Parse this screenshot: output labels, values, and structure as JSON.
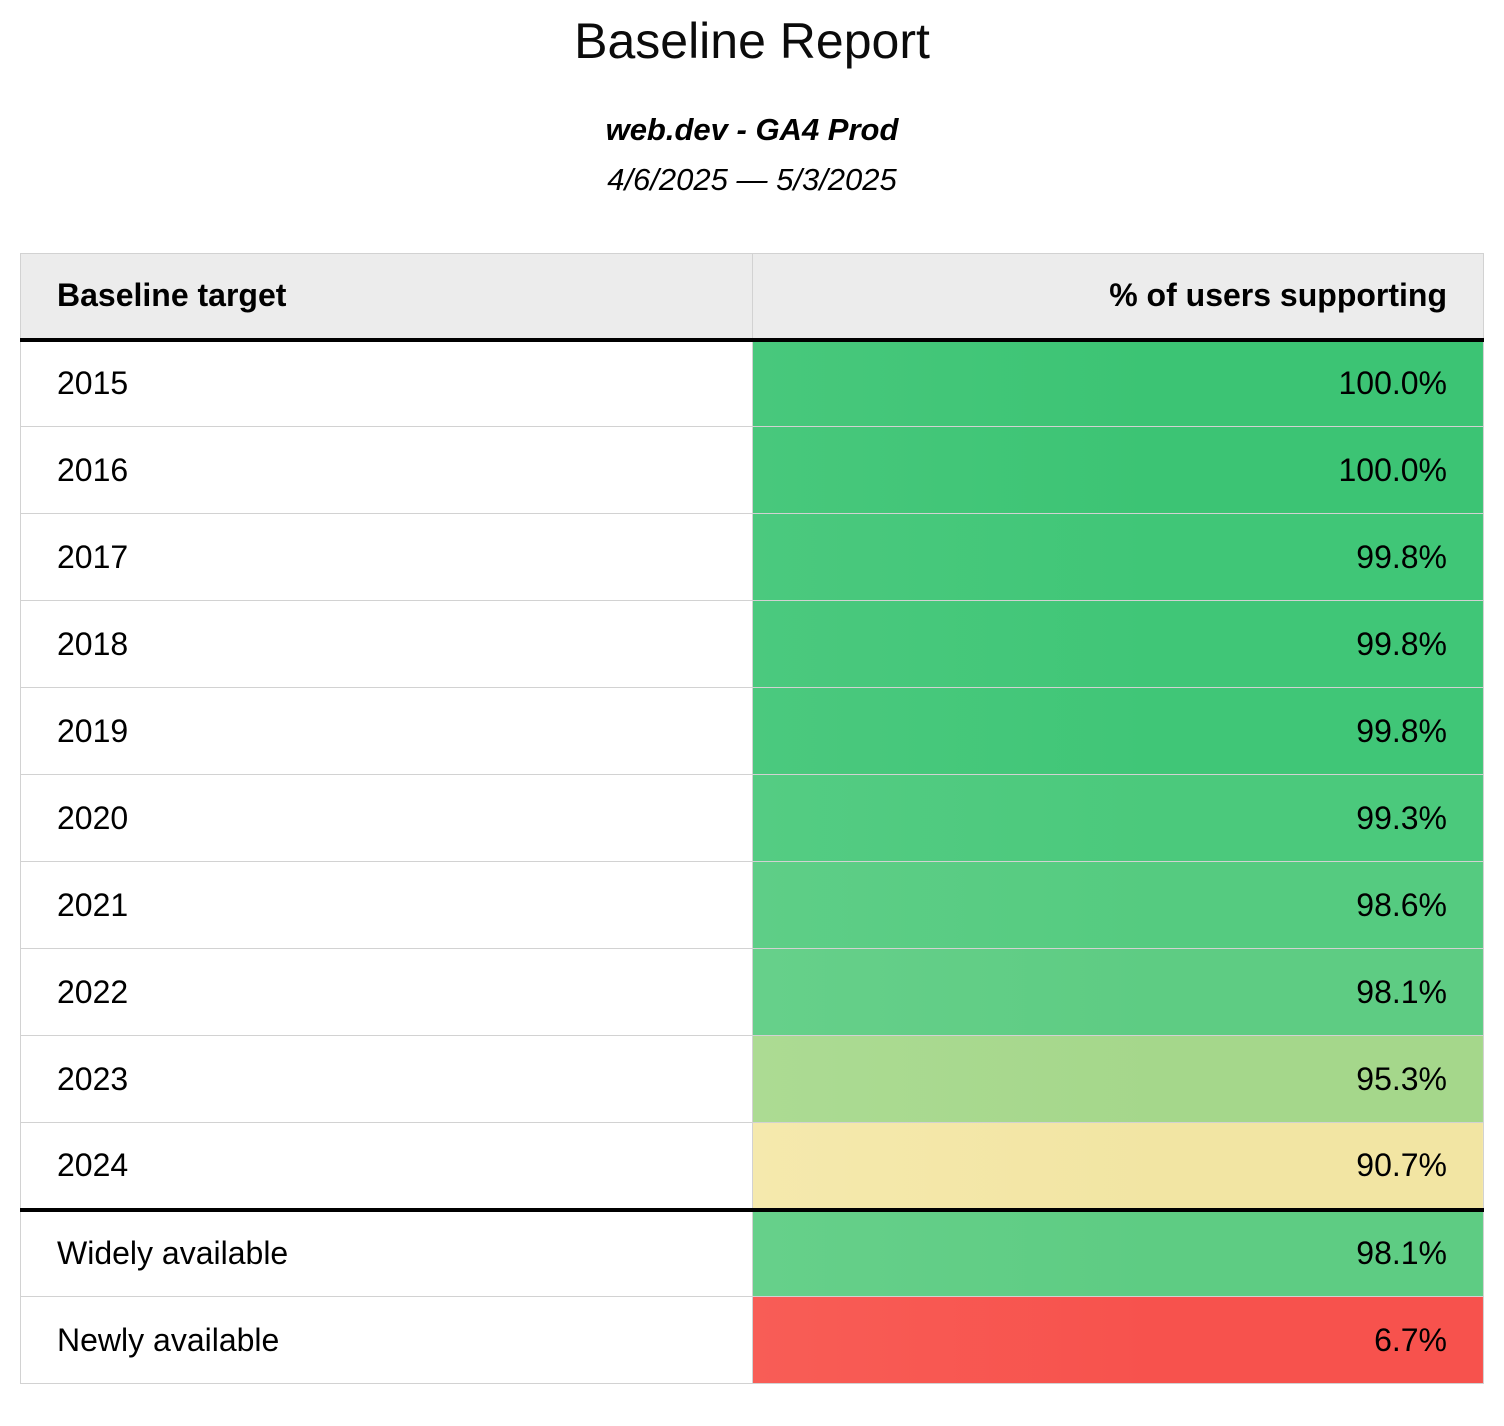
{
  "report": {
    "title": "Baseline Report",
    "property": "web.dev - GA4 Prod",
    "date_range": "4/6/2025 — 5/3/2025"
  },
  "colors": {
    "header_background": "#ececec",
    "grid_border": "#d2d2d2",
    "section_divider": "#000000"
  },
  "chart_data": {
    "type": "table",
    "title": "Baseline Report",
    "columns": [
      "Baseline target",
      "% of users supporting"
    ],
    "rows": [
      {
        "label": "2015",
        "value": "100.0%",
        "percent": 100.0,
        "color": "#3cc474",
        "color_left": "#48c87c",
        "section_start": false
      },
      {
        "label": "2016",
        "value": "100.0%",
        "percent": 100.0,
        "color": "#3cc474",
        "color_left": "#48c87c",
        "section_start": false
      },
      {
        "label": "2017",
        "value": "99.8%",
        "percent": 99.8,
        "color": "#40c677",
        "color_left": "#4bc97e",
        "section_start": false
      },
      {
        "label": "2018",
        "value": "99.8%",
        "percent": 99.8,
        "color": "#40c677",
        "color_left": "#4bc97e",
        "section_start": false
      },
      {
        "label": "2019",
        "value": "99.8%",
        "percent": 99.8,
        "color": "#40c677",
        "color_left": "#4bc97e",
        "section_start": false
      },
      {
        "label": "2020",
        "value": "99.3%",
        "percent": 99.3,
        "color": "#4bc97c",
        "color_left": "#54cc83",
        "section_start": false
      },
      {
        "label": "2021",
        "value": "98.6%",
        "percent": 98.6,
        "color": "#55cb80",
        "color_left": "#5ece87",
        "section_start": false
      },
      {
        "label": "2022",
        "value": "98.1%",
        "percent": 98.1,
        "color": "#5ecc83",
        "color_left": "#66d08a",
        "section_start": false
      },
      {
        "label": "2023",
        "value": "95.3%",
        "percent": 95.3,
        "color": "#a5d78b",
        "color_left": "#acdb93",
        "section_start": false
      },
      {
        "label": "2024",
        "value": "90.7%",
        "percent": 90.7,
        "color": "#f2e5a3",
        "color_left": "#f5e9ad",
        "section_start": false
      },
      {
        "label": "Widely available",
        "value": "98.1%",
        "percent": 98.1,
        "color": "#5ecc83",
        "color_left": "#66d08a",
        "section_start": true
      },
      {
        "label": "Newly available",
        "value": "6.7%",
        "percent": 6.7,
        "color": "#f7524d",
        "color_left": "#f85d56",
        "section_start": false
      }
    ]
  }
}
